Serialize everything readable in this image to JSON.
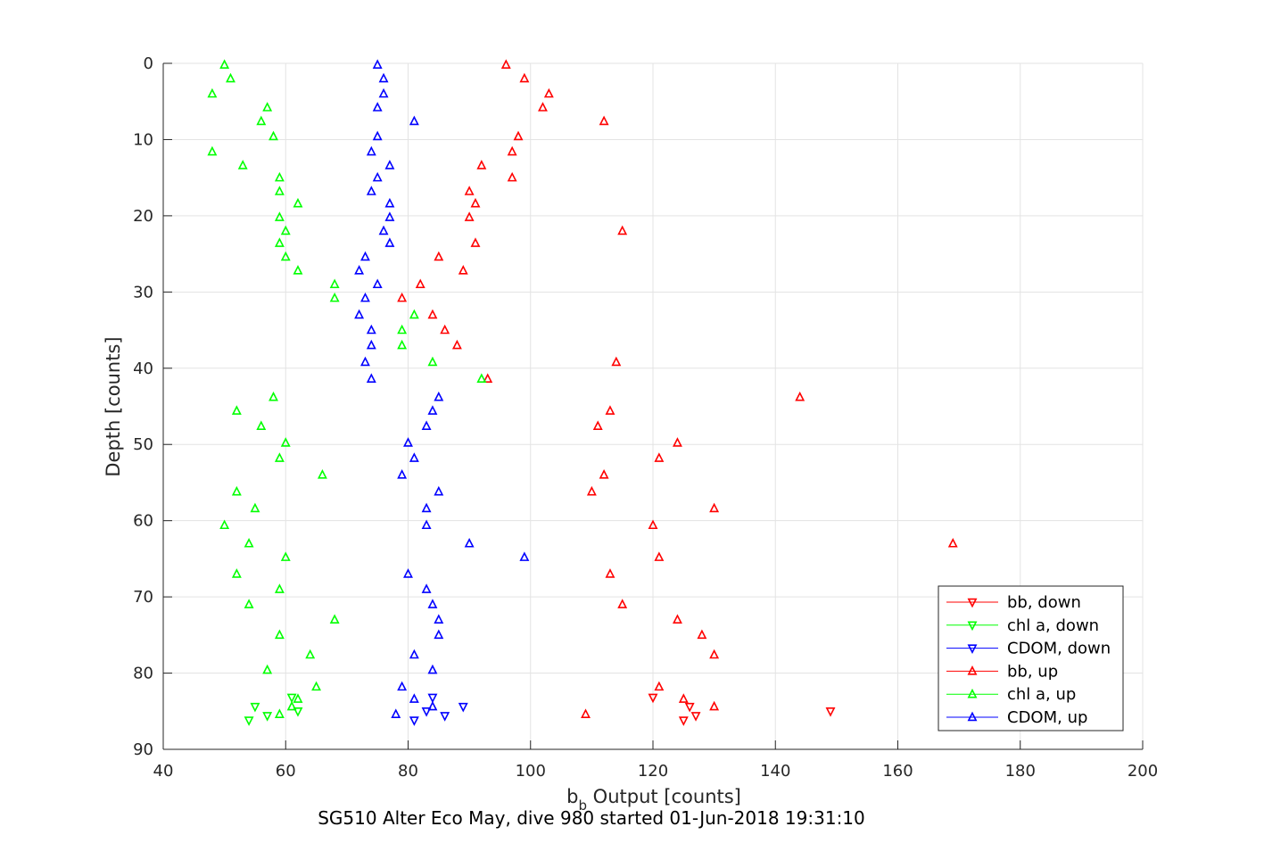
{
  "chart_data": {
    "type": "scatter",
    "xlabel_main": "b",
    "xlabel_sub": "b",
    "xlabel_rest": " Output [counts]",
    "ylabel": "Depth [counts]",
    "caption": "SG510 Alter Eco May, dive 980 started 01-Jun-2018 19:31:10",
    "xlim": [
      40,
      200
    ],
    "ylim": [
      0,
      90
    ],
    "y_reversed": true,
    "x_ticks": [
      40,
      60,
      80,
      100,
      120,
      140,
      160,
      180,
      200
    ],
    "y_ticks": [
      0,
      10,
      20,
      30,
      40,
      50,
      60,
      70,
      80,
      90
    ],
    "grid": true,
    "legend_position": "bottom-right",
    "series": [
      {
        "name": "bb, down",
        "color": "#ff0000",
        "marker": "triangle-down",
        "points": [
          [
            120,
            83.2
          ],
          [
            125,
            86.2
          ],
          [
            127,
            85.6
          ],
          [
            149,
            85.0
          ],
          [
            126,
            84.4
          ]
        ]
      },
      {
        "name": "chl a, down",
        "color": "#00ff00",
        "marker": "triangle-down",
        "points": [
          [
            61,
            83.2
          ],
          [
            55,
            84.4
          ],
          [
            62,
            85.0
          ],
          [
            57,
            85.6
          ],
          [
            54,
            86.2
          ]
        ]
      },
      {
        "name": "CDOM, down",
        "color": "#0000ff",
        "marker": "triangle-down",
        "points": [
          [
            84,
            83.2
          ],
          [
            89,
            84.4
          ],
          [
            83,
            85.0
          ],
          [
            86,
            85.6
          ],
          [
            81,
            86.2
          ]
        ]
      },
      {
        "name": "bb, up",
        "color": "#ff0000",
        "marker": "triangle-up",
        "points": [
          [
            96,
            0.2
          ],
          [
            99,
            2
          ],
          [
            103,
            4
          ],
          [
            102,
            5.8
          ],
          [
            112,
            7.6
          ],
          [
            98,
            9.6
          ],
          [
            97,
            11.6
          ],
          [
            92,
            13.4
          ],
          [
            97,
            15
          ],
          [
            90,
            16.8
          ],
          [
            91,
            18.4
          ],
          [
            90,
            20.2
          ],
          [
            115,
            22
          ],
          [
            91,
            23.6
          ],
          [
            85,
            25.4
          ],
          [
            89,
            27.2
          ],
          [
            82,
            29
          ],
          [
            79,
            30.8
          ],
          [
            84,
            33
          ],
          [
            86,
            35
          ],
          [
            88,
            37
          ],
          [
            114,
            39.2
          ],
          [
            93,
            41.4
          ],
          [
            144,
            43.8
          ],
          [
            113,
            45.6
          ],
          [
            111,
            47.6
          ],
          [
            124,
            49.8
          ],
          [
            121,
            51.8
          ],
          [
            112,
            54
          ],
          [
            110,
            56.2
          ],
          [
            130,
            58.4
          ],
          [
            120,
            60.6
          ],
          [
            169,
            63
          ],
          [
            121,
            64.8
          ],
          [
            113,
            67
          ],
          [
            115,
            71
          ],
          [
            124,
            73
          ],
          [
            128,
            75
          ],
          [
            130,
            77.6
          ],
          [
            121,
            81.8
          ],
          [
            125,
            83.4
          ],
          [
            130,
            84.4
          ],
          [
            109,
            85.4
          ]
        ]
      },
      {
        "name": "chl a, up",
        "color": "#00ff00",
        "marker": "triangle-up",
        "points": [
          [
            50,
            0.2
          ],
          [
            51,
            2
          ],
          [
            48,
            4
          ],
          [
            57,
            5.8
          ],
          [
            56,
            7.6
          ],
          [
            58,
            9.6
          ],
          [
            48,
            11.6
          ],
          [
            53,
            13.4
          ],
          [
            59,
            15
          ],
          [
            59,
            16.8
          ],
          [
            62,
            18.4
          ],
          [
            59,
            20.2
          ],
          [
            60,
            22
          ],
          [
            59,
            23.6
          ],
          [
            60,
            25.4
          ],
          [
            62,
            27.2
          ],
          [
            68,
            29
          ],
          [
            68,
            30.8
          ],
          [
            81,
            33
          ],
          [
            79,
            35
          ],
          [
            79,
            37
          ],
          [
            84,
            39.2
          ],
          [
            92,
            41.4
          ],
          [
            58,
            43.8
          ],
          [
            52,
            45.6
          ],
          [
            56,
            47.6
          ],
          [
            60,
            49.8
          ],
          [
            59,
            51.8
          ],
          [
            66,
            54
          ],
          [
            52,
            56.2
          ],
          [
            55,
            58.4
          ],
          [
            50,
            60.6
          ],
          [
            54,
            63
          ],
          [
            60,
            64.8
          ],
          [
            52,
            67
          ],
          [
            59,
            69
          ],
          [
            54,
            71
          ],
          [
            68,
            73
          ],
          [
            59,
            75
          ],
          [
            64,
            77.6
          ],
          [
            57,
            79.6
          ],
          [
            65,
            81.8
          ],
          [
            62,
            83.4
          ],
          [
            61,
            84.4
          ],
          [
            59,
            85.4
          ]
        ]
      },
      {
        "name": "CDOM, up",
        "color": "#0000ff",
        "marker": "triangle-up",
        "points": [
          [
            75,
            0.2
          ],
          [
            76,
            2
          ],
          [
            76,
            4
          ],
          [
            75,
            5.8
          ],
          [
            81,
            7.6
          ],
          [
            75,
            9.6
          ],
          [
            74,
            11.6
          ],
          [
            77,
            13.4
          ],
          [
            75,
            15
          ],
          [
            74,
            16.8
          ],
          [
            77,
            18.4
          ],
          [
            77,
            20.2
          ],
          [
            76,
            22
          ],
          [
            77,
            23.6
          ],
          [
            73,
            25.4
          ],
          [
            72,
            27.2
          ],
          [
            75,
            29
          ],
          [
            73,
            30.8
          ],
          [
            72,
            33
          ],
          [
            74,
            35
          ],
          [
            74,
            37
          ],
          [
            73,
            39.2
          ],
          [
            74,
            41.4
          ],
          [
            85,
            43.8
          ],
          [
            84,
            45.6
          ],
          [
            83,
            47.6
          ],
          [
            80,
            49.8
          ],
          [
            81,
            51.8
          ],
          [
            79,
            54
          ],
          [
            85,
            56.2
          ],
          [
            83,
            58.4
          ],
          [
            83,
            60.6
          ],
          [
            90,
            63
          ],
          [
            99,
            64.8
          ],
          [
            80,
            67
          ],
          [
            83,
            69
          ],
          [
            84,
            71
          ],
          [
            85,
            73
          ],
          [
            85,
            75
          ],
          [
            81,
            77.6
          ],
          [
            84,
            79.6
          ],
          [
            79,
            81.8
          ],
          [
            81,
            83.4
          ],
          [
            84,
            84.4
          ],
          [
            78,
            85.4
          ]
        ]
      }
    ]
  }
}
